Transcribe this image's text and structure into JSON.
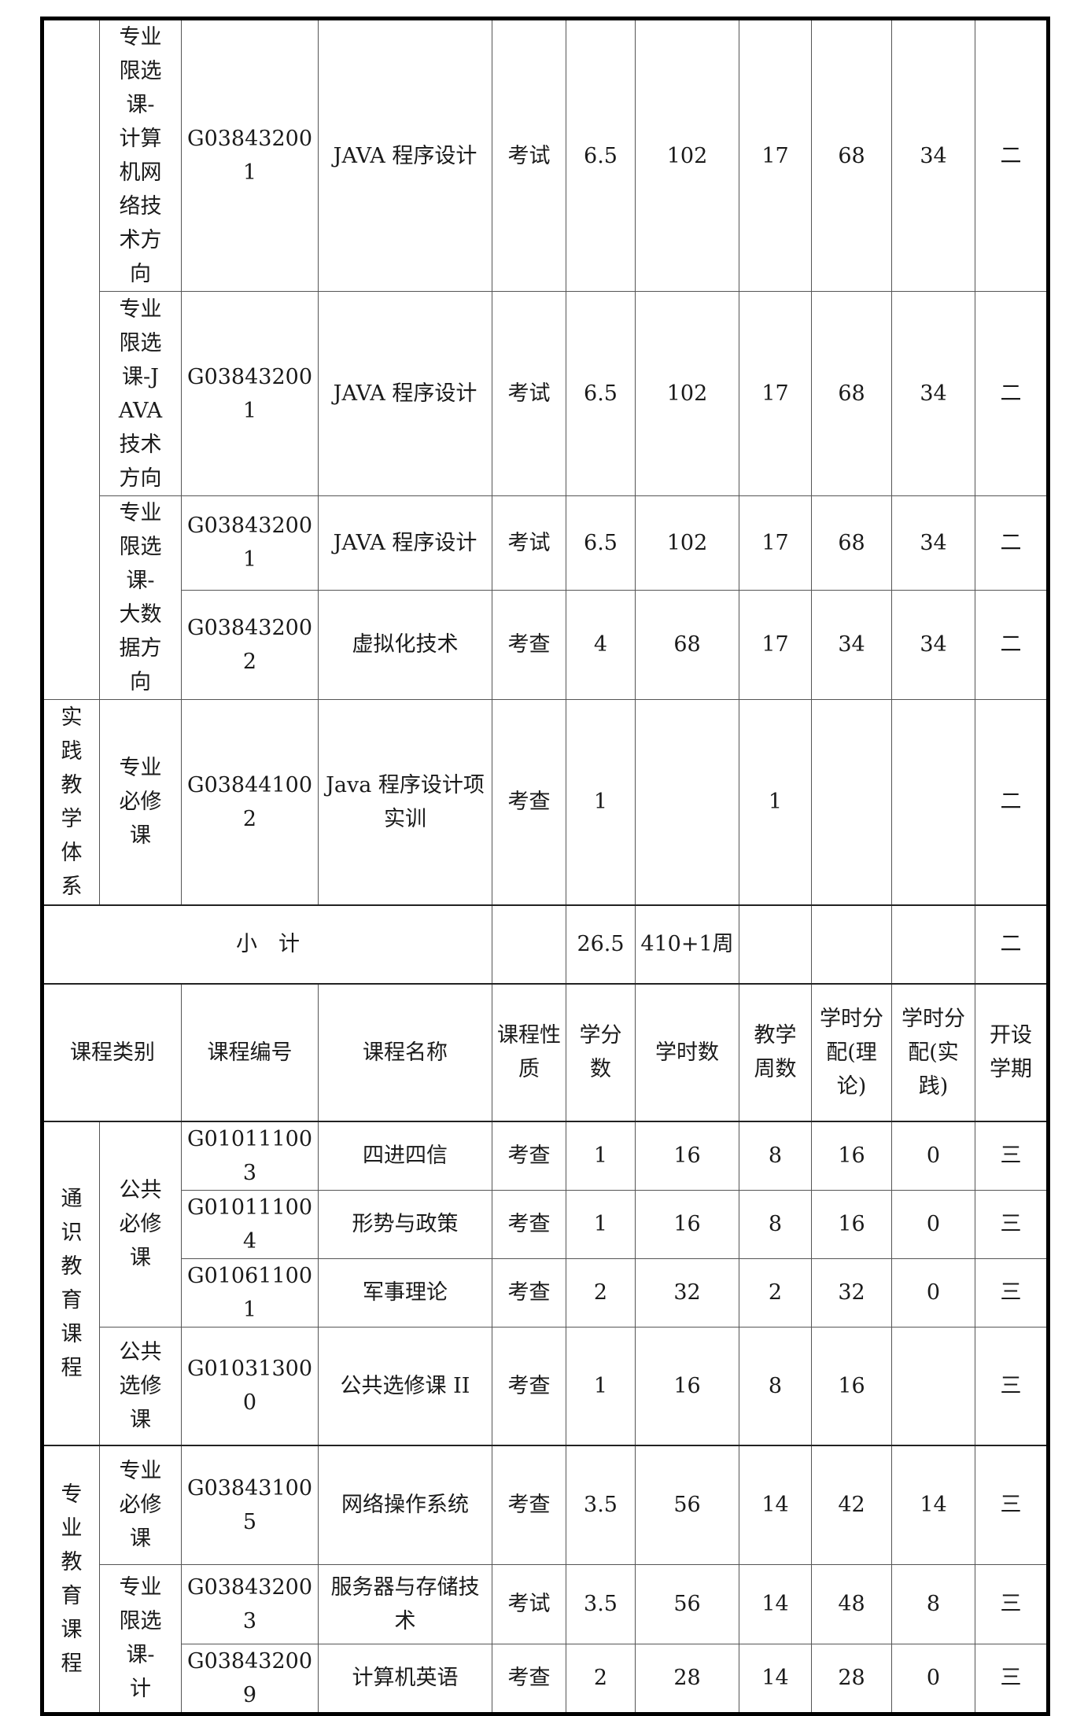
{
  "table": {
    "rows": [
      [
        "",
        "专业限选课-计算机网络技术方向",
        "G038432001",
        "JAVA 程序设计",
        "考试",
        "6.5",
        "102",
        "17",
        "68",
        "34",
        "二"
      ],
      [
        "专业限选课-JAVA技术方向",
        "G038432001",
        "JAVA 程序设计",
        "考试",
        "6.5",
        "102",
        "17",
        "68",
        "34",
        "二"
      ],
      [
        "专业限选课-大数据方向",
        "G038432001",
        "JAVA 程序设计",
        "考试",
        "6.5",
        "102",
        "17",
        "68",
        "34",
        "二"
      ],
      [
        "G038432002",
        "虚拟化技术",
        "考查",
        "4",
        "68",
        "17",
        "34",
        "34",
        "二"
      ],
      [
        "实践教学体系",
        "专业必修课",
        "G038441002",
        "Java 程序设计项实训",
        "考查",
        "1",
        "",
        "1",
        "",
        "",
        "二"
      ],
      [
        "小　计",
        "",
        "26.5",
        "410+1周",
        "",
        "",
        "",
        "二"
      ],
      [
        "课程类别",
        "课程编号",
        "课程名称",
        "课程性质",
        "学分数",
        "学时数",
        "教学周数",
        "学时分配(理论)",
        "学时分配(实践)",
        "开设学期"
      ],
      [
        "通识教育课程",
        "公共必修课",
        "G010111003",
        "四进四信",
        "考查",
        "1",
        "16",
        "8",
        "16",
        "0",
        "三"
      ],
      [
        "G010111004",
        "形势与政策",
        "考查",
        "1",
        "16",
        "8",
        "16",
        "0",
        "三"
      ],
      [
        "G010611001",
        "军事理论",
        "考查",
        "2",
        "32",
        "2",
        "32",
        "0",
        "三"
      ],
      [
        "公共选修课",
        "G010313000",
        "公共选修课 II",
        "考查",
        "1",
        "16",
        "8",
        "16",
        "",
        "三"
      ],
      [
        "专业教育课程",
        "专业必修课",
        "G038431005",
        "网络操作系统",
        "考查",
        "3.5",
        "56",
        "14",
        "42",
        "14",
        "三"
      ],
      [
        "专业限选课-计",
        "G038432003",
        "服务器与存储技术",
        "考试",
        "3.5",
        "56",
        "14",
        "48",
        "8",
        "三"
      ],
      [
        "G038432009",
        "计算机英语",
        "考查",
        "2",
        "28",
        "14",
        "28",
        "0",
        "三"
      ]
    ]
  }
}
